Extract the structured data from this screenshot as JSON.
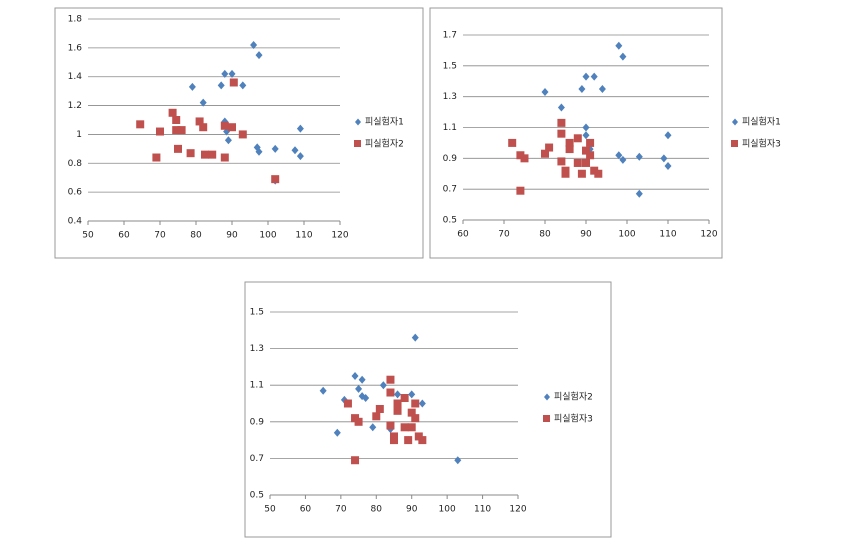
{
  "chart_data": [
    {
      "type": "scatter",
      "xlim": [
        50,
        120
      ],
      "xticks": [
        50,
        60,
        70,
        80,
        90,
        100,
        110,
        120
      ],
      "ylim": [
        0.4,
        1.8
      ],
      "yticks": [
        0.4,
        0.6,
        0.8,
        1,
        1.2,
        1.4,
        1.6,
        1.8
      ],
      "grid": true,
      "series": [
        {
          "name": "피실험자1",
          "color": "#4f81bd",
          "marker": "diamond",
          "x": [
            79,
            82,
            87,
            88,
            90,
            93,
            96,
            97.5,
            97,
            97.5,
            88,
            89,
            88.5,
            102,
            102,
            107.5,
            109,
            109
          ],
          "values": [
            1.33,
            1.22,
            1.34,
            1.42,
            1.42,
            1.34,
            1.62,
            1.55,
            0.91,
            0.88,
            1.09,
            0.96,
            1.02,
            0.9,
            0.68,
            0.89,
            0.85,
            1.04
          ]
        },
        {
          "name": "피실험자2",
          "color": "#c0504d",
          "marker": "square",
          "x": [
            64.5,
            69,
            70,
            73.5,
            74.5,
            74.5,
            76,
            75,
            78.5,
            81,
            82,
            82.5,
            84.5,
            88,
            88,
            90,
            90.5,
            93,
            102
          ],
          "values": [
            1.07,
            0.84,
            1.02,
            1.15,
            1.1,
            1.03,
            1.03,
            0.9,
            0.87,
            1.09,
            1.05,
            0.86,
            0.86,
            0.84,
            1.06,
            1.05,
            1.36,
            1.0,
            0.69
          ]
        }
      ]
    },
    {
      "type": "scatter",
      "xlim": [
        60,
        120
      ],
      "xticks": [
        60,
        70,
        80,
        90,
        100,
        110,
        120
      ],
      "ylim": [
        0.5,
        1.7
      ],
      "yticks": [
        0.5,
        0.7,
        0.9,
        1.1,
        1.3,
        1.5,
        1.7
      ],
      "grid": true,
      "series": [
        {
          "name": "피실험자1",
          "color": "#4f81bd",
          "marker": "diamond",
          "x": [
            80,
            84,
            89,
            90,
            92,
            94,
            98,
            99,
            98,
            99,
            90,
            91,
            90,
            103,
            103,
            109,
            110,
            110
          ],
          "values": [
            1.33,
            1.23,
            1.35,
            1.43,
            1.43,
            1.35,
            1.63,
            1.56,
            0.92,
            0.89,
            1.1,
            0.96,
            1.05,
            0.91,
            0.67,
            0.9,
            0.85,
            1.05
          ]
        },
        {
          "name": "피실험자3",
          "color": "#c0504d",
          "marker": "square",
          "x": [
            72,
            74,
            74,
            75,
            80,
            81,
            84,
            84,
            84,
            85,
            85,
            86,
            86,
            88,
            88,
            89,
            90,
            90,
            91,
            91,
            92,
            93
          ],
          "values": [
            1.0,
            0.69,
            0.92,
            0.9,
            0.93,
            0.97,
            1.13,
            1.06,
            0.88,
            0.82,
            0.8,
            0.96,
            1.0,
            1.03,
            0.87,
            0.8,
            0.95,
            0.87,
            1.0,
            0.92,
            0.82,
            0.8
          ]
        }
      ]
    },
    {
      "type": "scatter",
      "xlim": [
        50,
        120
      ],
      "xticks": [
        50,
        60,
        70,
        80,
        90,
        100,
        110,
        120
      ],
      "ylim": [
        0.5,
        1.5
      ],
      "yticks": [
        0.5,
        0.7,
        0.9,
        1.1,
        1.3,
        1.5
      ],
      "grid": true,
      "series": [
        {
          "name": "피실험자2",
          "color": "#4f81bd",
          "marker": "diamond",
          "x": [
            65,
            69,
            71,
            74,
            75,
            76,
            76,
            77,
            79,
            82,
            84,
            86,
            88,
            89,
            90,
            91,
            93,
            103
          ],
          "values": [
            1.07,
            0.84,
            1.02,
            1.15,
            1.08,
            1.13,
            1.04,
            1.03,
            0.87,
            1.1,
            0.86,
            1.05,
            1.03,
            0.8,
            1.05,
            1.36,
            1.0,
            0.69
          ]
        },
        {
          "name": "피실험자3",
          "color": "#c0504d",
          "marker": "square",
          "x": [
            72,
            74,
            74,
            75,
            80,
            81,
            84,
            84,
            84,
            85,
            85,
            86,
            86,
            88,
            88,
            89,
            90,
            90,
            91,
            91,
            92,
            93
          ],
          "values": [
            1.0,
            0.69,
            0.92,
            0.9,
            0.93,
            0.97,
            1.13,
            1.06,
            0.88,
            0.82,
            0.8,
            0.96,
            1.0,
            1.03,
            0.87,
            0.8,
            0.95,
            0.87,
            1.0,
            0.92,
            0.82,
            0.8
          ]
        }
      ]
    }
  ]
}
